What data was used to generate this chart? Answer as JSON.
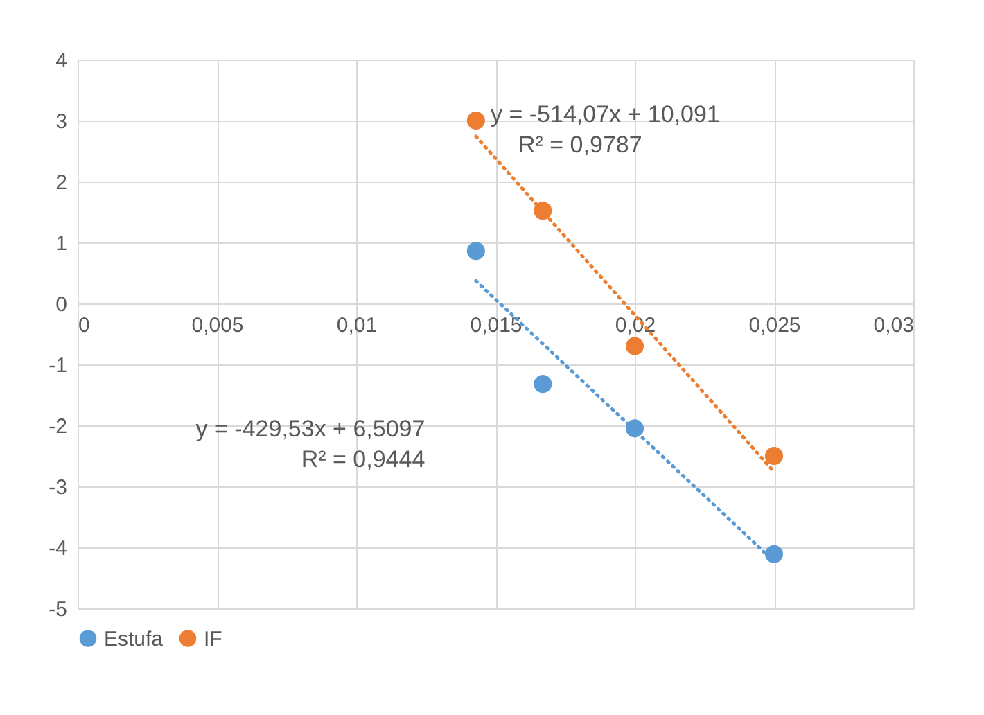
{
  "chart_data": {
    "type": "scatter",
    "xlim": [
      0,
      0.03
    ],
    "xticks": [
      0,
      {
        "value": 0.005,
        "label": "0,005"
      },
      {
        "value": 0.01,
        "label": "0,01"
      },
      {
        "value": 0.015,
        "label": "0,015"
      },
      {
        "value": 0.02,
        "label": "0,02"
      },
      {
        "value": 0.025,
        "label": "0,025"
      },
      {
        "value": 0.03,
        "label": "0,03"
      }
    ],
    "ylim": [
      -5,
      4
    ],
    "yticks": [
      -5,
      -4,
      -3,
      -2,
      -1,
      0,
      1,
      2,
      3,
      4
    ],
    "grid": true,
    "legend": "bottom",
    "marker": "circle",
    "series": [
      {
        "name": "Estufa",
        "color": "#5b9bd5",
        "x": [
          0.0143,
          0.0167,
          0.02,
          0.025
        ],
        "values": [
          0.86,
          -1.32,
          -2.05,
          -4.11
        ]
      },
      {
        "name": "IF",
        "color": "#ed7d31",
        "x": [
          0.0143,
          0.0167,
          0.02,
          0.025
        ],
        "values": [
          3.0,
          1.52,
          -0.7,
          -2.5
        ]
      },
      {
        "type": "line",
        "color": "#5b9bd5",
        "line_style": "dotted",
        "marker": "none",
        "x": [
          0.0143,
          0.025
        ],
        "values": [
          0.37,
          -4.23
        ]
      },
      {
        "type": "line",
        "color": "#ed7d31",
        "line_style": "dotted",
        "marker": "none",
        "x": [
          0.0143,
          0.025
        ],
        "values": [
          2.74,
          -2.76
        ]
      }
    ],
    "annotations": [
      "y = -514,07x + 10,091",
      "R² = 0,9787",
      "y = -429,53x + 6,5097",
      "R² = 0,9444"
    ]
  }
}
